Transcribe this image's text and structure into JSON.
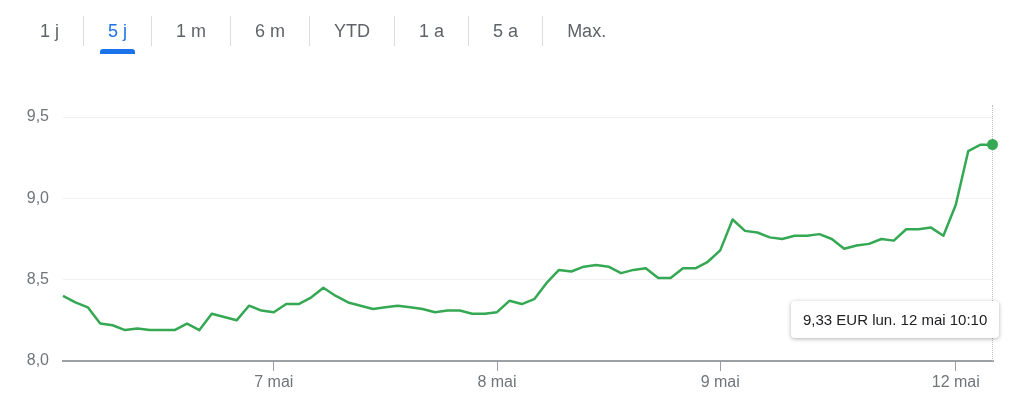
{
  "chart_data": {
    "type": "line",
    "categories": [
      null,
      null,
      null,
      null,
      null,
      null,
      null,
      null,
      null,
      null,
      null,
      null,
      null,
      null,
      null,
      null,
      null,
      "7 mai",
      null,
      null,
      null,
      null,
      null,
      null,
      null,
      null,
      null,
      null,
      null,
      null,
      null,
      null,
      null,
      null,
      null,
      "8 mai",
      null,
      null,
      null,
      null,
      null,
      null,
      null,
      null,
      null,
      null,
      null,
      null,
      null,
      null,
      null,
      null,
      null,
      "9 mai",
      null,
      null,
      null,
      null,
      null,
      null,
      null,
      null,
      null,
      null,
      null,
      null,
      null,
      null,
      null,
      null,
      null,
      null,
      "12 mai",
      null,
      null,
      null
    ],
    "series": [
      {
        "color": "#34a853",
        "values": [
          8.4,
          8.36,
          8.33,
          8.23,
          8.22,
          8.19,
          8.2,
          8.19,
          8.19,
          8.19,
          8.23,
          8.19,
          8.29,
          8.27,
          8.25,
          8.34,
          8.31,
          8.3,
          8.35,
          8.35,
          8.39,
          8.45,
          8.4,
          8.36,
          8.34,
          8.32,
          8.33,
          8.34,
          8.33,
          8.32,
          8.3,
          8.31,
          8.31,
          8.29,
          8.29,
          8.3,
          8.37,
          8.35,
          8.38,
          8.48,
          8.56,
          8.55,
          8.58,
          8.59,
          8.58,
          8.54,
          8.56,
          8.57,
          8.51,
          8.51,
          8.57,
          8.57,
          8.61,
          8.68,
          8.87,
          8.8,
          8.79,
          8.76,
          8.75,
          8.77,
          8.77,
          8.78,
          8.75,
          8.69,
          8.71,
          8.72,
          8.75,
          8.74,
          8.81,
          8.81,
          8.82,
          8.77,
          8.96,
          9.29,
          9.33,
          9.33
        ]
      }
    ],
    "ylim": [
      8,
      9.5
    ],
    "yticks": [
      {
        "value": 8,
        "label": "8,0"
      },
      {
        "value": 8.5,
        "label": "8,5"
      },
      {
        "value": 9,
        "label": "9,0"
      },
      {
        "value": 9.5,
        "label": "9,5"
      }
    ],
    "grid": "y",
    "legend": false,
    "marker": "none",
    "line_style": "solid",
    "annotations": [
      "1 j",
      "5 j",
      "1 m",
      "6 m",
      "YTD",
      "1 a",
      "5 a",
      "Max.",
      "9,33 EUR lun. 12 mai 10:10"
    ]
  }
}
